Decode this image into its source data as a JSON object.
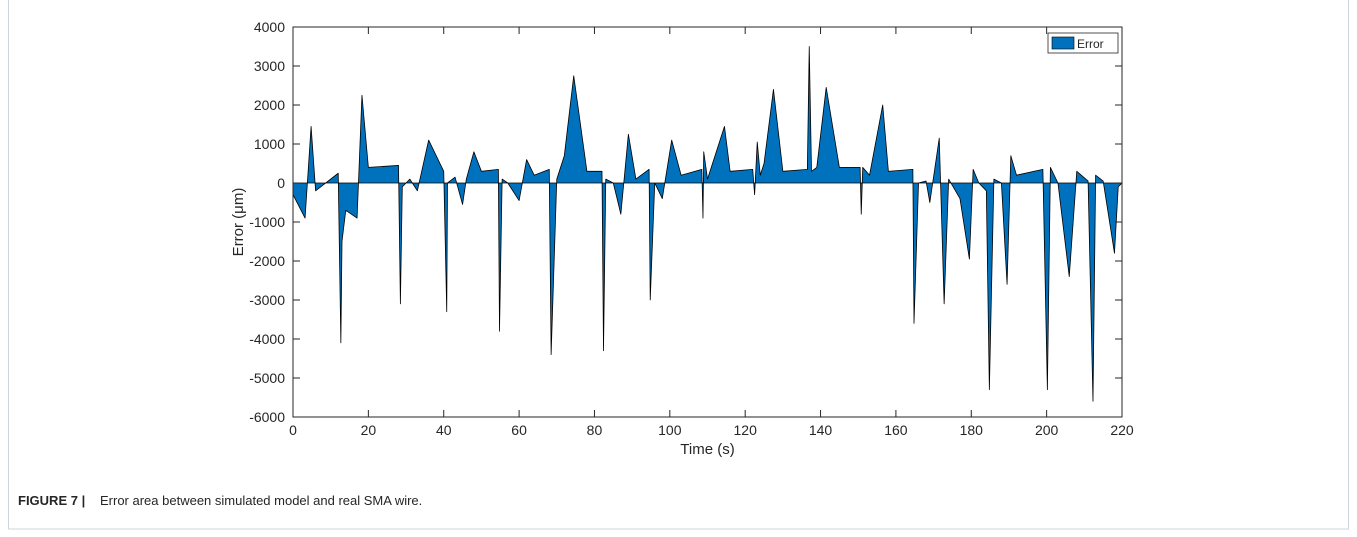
{
  "chart_data": {
    "type": "area",
    "xlabel": "Time (s)",
    "ylabel": "Error (μm)",
    "x": [
      0,
      3.2,
      4.8,
      6,
      12,
      12.7,
      13,
      14,
      17,
      18.3,
      20,
      28,
      28.5,
      29,
      31,
      33,
      36,
      38,
      40,
      40.8,
      41,
      43,
      45,
      46,
      48,
      50,
      54.5,
      54.8,
      55.5,
      57,
      60,
      62,
      64,
      68,
      68.5,
      70,
      72,
      74.5,
      78,
      82,
      82.4,
      83,
      85,
      87,
      89,
      91,
      94.5,
      94.8,
      96,
      98,
      100.5,
      103,
      108.5,
      108.8,
      109,
      110,
      111,
      114.5,
      116,
      122,
      122.5,
      123.2,
      124,
      125,
      127.5,
      130,
      136.5,
      137,
      137.6,
      139,
      141.5,
      145,
      150.5,
      150.8,
      151.2,
      153,
      156.5,
      158,
      164.5,
      164.8,
      166,
      168,
      169,
      171.5,
      172.8,
      174,
      177,
      179.5,
      180.5,
      182,
      184,
      184.8,
      186,
      188,
      189.5,
      190.5,
      192,
      199,
      200.2,
      201,
      203,
      206,
      208,
      211,
      212.3,
      213,
      215,
      218,
      219,
      220
    ],
    "series": [
      {
        "name": "Error",
        "color": "#0072bd",
        "values": [
          -300,
          -900,
          1450,
          -200,
          250,
          -4100,
          -1500,
          -700,
          -900,
          2250,
          400,
          450,
          -3100,
          -100,
          100,
          -200,
          1100,
          700,
          300,
          -3300,
          0,
          150,
          -550,
          100,
          800,
          300,
          350,
          -3800,
          100,
          0,
          -450,
          600,
          200,
          350,
          -4400,
          100,
          700,
          2750,
          300,
          300,
          -4300,
          100,
          0,
          -800,
          1250,
          100,
          350,
          -3000,
          0,
          -400,
          1100,
          200,
          350,
          -900,
          800,
          100,
          400,
          1450,
          300,
          350,
          -300,
          1050,
          200,
          500,
          2400,
          300,
          350,
          3500,
          300,
          400,
          2450,
          400,
          400,
          -800,
          400,
          200,
          2000,
          300,
          350,
          -3600,
          0,
          50,
          -500,
          1150,
          -3100,
          100,
          -400,
          -1950,
          350,
          0,
          -200,
          -5300,
          100,
          0,
          -2600,
          700,
          200,
          350,
          -5300,
          400,
          0,
          -2400,
          300,
          50,
          -5600,
          200,
          50,
          -1800,
          -100,
          0
        ]
      }
    ],
    "xlim": [
      0,
      220
    ],
    "ylim": [
      -6000,
      4000
    ],
    "xticks": [
      0,
      20,
      40,
      60,
      80,
      100,
      120,
      140,
      160,
      180,
      200,
      220
    ],
    "yticks": [
      -6000,
      -5000,
      -4000,
      -3000,
      -2000,
      -1000,
      0,
      1000,
      2000,
      3000,
      4000
    ],
    "legend": "top-right"
  },
  "caption": {
    "label": "FIGURE 7 |",
    "text": "Error area between simulated model and real SMA wire."
  }
}
